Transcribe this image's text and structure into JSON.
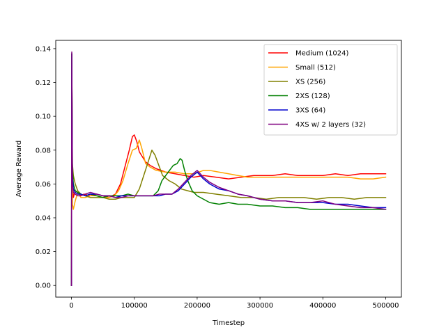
{
  "chart_data": {
    "type": "line",
    "title": "",
    "xlabel": "Timestep",
    "ylabel": "Average Reward",
    "xlim": [
      -25000,
      525000
    ],
    "ylim": [
      -0.0069,
      0.1449
    ],
    "xticks": [
      0,
      100000,
      200000,
      300000,
      400000,
      500000
    ],
    "xtick_labels": [
      "0",
      "100000",
      "200000",
      "300000",
      "400000",
      "500000"
    ],
    "yticks": [
      0.0,
      0.02,
      0.04,
      0.06,
      0.08,
      0.1,
      0.12,
      0.14
    ],
    "ytick_labels": [
      "0.00",
      "0.02",
      "0.04",
      "0.06",
      "0.08",
      "0.10",
      "0.12",
      "0.14"
    ],
    "grid": false,
    "legend_position": "upper right",
    "series": [
      {
        "name": "Medium (1024)",
        "color": "#ff0000",
        "points": [
          [
            0,
            0.0
          ],
          [
            500,
            0.137
          ],
          [
            1500,
            0.06
          ],
          [
            3000,
            0.052
          ],
          [
            6000,
            0.056
          ],
          [
            10000,
            0.055
          ],
          [
            15000,
            0.053
          ],
          [
            20000,
            0.054
          ],
          [
            30000,
            0.053
          ],
          [
            40000,
            0.054
          ],
          [
            50000,
            0.053
          ],
          [
            60000,
            0.052
          ],
          [
            70000,
            0.054
          ],
          [
            78000,
            0.06
          ],
          [
            85000,
            0.07
          ],
          [
            92000,
            0.08
          ],
          [
            97000,
            0.088
          ],
          [
            100000,
            0.089
          ],
          [
            104000,
            0.085
          ],
          [
            108000,
            0.079
          ],
          [
            113000,
            0.076
          ],
          [
            118000,
            0.073
          ],
          [
            125000,
            0.071
          ],
          [
            135000,
            0.069
          ],
          [
            150000,
            0.067
          ],
          [
            165000,
            0.066
          ],
          [
            180000,
            0.065
          ],
          [
            195000,
            0.064
          ],
          [
            210000,
            0.065
          ],
          [
            230000,
            0.064
          ],
          [
            250000,
            0.063
          ],
          [
            270000,
            0.064
          ],
          [
            290000,
            0.065
          ],
          [
            320000,
            0.065
          ],
          [
            340000,
            0.066
          ],
          [
            360000,
            0.065
          ],
          [
            380000,
            0.065
          ],
          [
            400000,
            0.065
          ],
          [
            420000,
            0.066
          ],
          [
            440000,
            0.065
          ],
          [
            460000,
            0.066
          ],
          [
            480000,
            0.066
          ],
          [
            500000,
            0.066
          ]
        ]
      },
      {
        "name": "Small (512)",
        "color": "#ffa500",
        "points": [
          [
            0,
            0.0
          ],
          [
            500,
            0.137
          ],
          [
            1500,
            0.048
          ],
          [
            3000,
            0.045
          ],
          [
            6000,
            0.05
          ],
          [
            10000,
            0.055
          ],
          [
            15000,
            0.052
          ],
          [
            22000,
            0.052
          ],
          [
            30000,
            0.053
          ],
          [
            40000,
            0.053
          ],
          [
            50000,
            0.052
          ],
          [
            60000,
            0.052
          ],
          [
            68000,
            0.053
          ],
          [
            75000,
            0.056
          ],
          [
            82000,
            0.062
          ],
          [
            90000,
            0.072
          ],
          [
            97000,
            0.08
          ],
          [
            103000,
            0.081
          ],
          [
            108000,
            0.086
          ],
          [
            112000,
            0.081
          ],
          [
            118000,
            0.072
          ],
          [
            125000,
            0.07
          ],
          [
            135000,
            0.068
          ],
          [
            150000,
            0.067
          ],
          [
            165000,
            0.067
          ],
          [
            180000,
            0.066
          ],
          [
            195000,
            0.066
          ],
          [
            210000,
            0.068
          ],
          [
            220000,
            0.068
          ],
          [
            235000,
            0.067
          ],
          [
            250000,
            0.066
          ],
          [
            265000,
            0.065
          ],
          [
            280000,
            0.064
          ],
          [
            300000,
            0.064
          ],
          [
            320000,
            0.064
          ],
          [
            340000,
            0.064
          ],
          [
            360000,
            0.064
          ],
          [
            380000,
            0.064
          ],
          [
            400000,
            0.064
          ],
          [
            420000,
            0.064
          ],
          [
            440000,
            0.064
          ],
          [
            460000,
            0.063
          ],
          [
            480000,
            0.063
          ],
          [
            500000,
            0.064
          ]
        ]
      },
      {
        "name": "XS (256)",
        "color": "#808000",
        "points": [
          [
            0,
            0.0
          ],
          [
            500,
            0.137
          ],
          [
            1500,
            0.072
          ],
          [
            3000,
            0.065
          ],
          [
            6000,
            0.06
          ],
          [
            10000,
            0.056
          ],
          [
            15000,
            0.054
          ],
          [
            22000,
            0.053
          ],
          [
            30000,
            0.052
          ],
          [
            40000,
            0.052
          ],
          [
            50000,
            0.052
          ],
          [
            60000,
            0.051
          ],
          [
            70000,
            0.051
          ],
          [
            80000,
            0.052
          ],
          [
            90000,
            0.052
          ],
          [
            100000,
            0.052
          ],
          [
            108000,
            0.057
          ],
          [
            115000,
            0.065
          ],
          [
            122000,
            0.073
          ],
          [
            128000,
            0.08
          ],
          [
            133000,
            0.077
          ],
          [
            138000,
            0.072
          ],
          [
            145000,
            0.065
          ],
          [
            155000,
            0.062
          ],
          [
            165000,
            0.06
          ],
          [
            175000,
            0.057
          ],
          [
            185000,
            0.056
          ],
          [
            195000,
            0.055
          ],
          [
            210000,
            0.055
          ],
          [
            230000,
            0.054
          ],
          [
            250000,
            0.053
          ],
          [
            270000,
            0.052
          ],
          [
            290000,
            0.052
          ],
          [
            310000,
            0.051
          ],
          [
            330000,
            0.052
          ],
          [
            350000,
            0.052
          ],
          [
            370000,
            0.052
          ],
          [
            390000,
            0.051
          ],
          [
            410000,
            0.052
          ],
          [
            430000,
            0.052
          ],
          [
            450000,
            0.051
          ],
          [
            470000,
            0.052
          ],
          [
            490000,
            0.052
          ],
          [
            500000,
            0.052
          ]
        ]
      },
      {
        "name": "2XS (128)",
        "color": "#008000",
        "points": [
          [
            0,
            0.0
          ],
          [
            500,
            0.137
          ],
          [
            1500,
            0.07
          ],
          [
            3000,
            0.06
          ],
          [
            6000,
            0.056
          ],
          [
            10000,
            0.055
          ],
          [
            15000,
            0.054
          ],
          [
            22000,
            0.053
          ],
          [
            30000,
            0.054
          ],
          [
            40000,
            0.053
          ],
          [
            50000,
            0.052
          ],
          [
            60000,
            0.053
          ],
          [
            70000,
            0.053
          ],
          [
            80000,
            0.053
          ],
          [
            90000,
            0.054
          ],
          [
            100000,
            0.053
          ],
          [
            110000,
            0.053
          ],
          [
            120000,
            0.053
          ],
          [
            130000,
            0.053
          ],
          [
            138000,
            0.056
          ],
          [
            144000,
            0.062
          ],
          [
            150000,
            0.065
          ],
          [
            156000,
            0.068
          ],
          [
            162000,
            0.071
          ],
          [
            168000,
            0.072
          ],
          [
            173000,
            0.075
          ],
          [
            176000,
            0.074
          ],
          [
            180000,
            0.068
          ],
          [
            185000,
            0.062
          ],
          [
            192000,
            0.056
          ],
          [
            200000,
            0.053
          ],
          [
            210000,
            0.051
          ],
          [
            220000,
            0.049
          ],
          [
            235000,
            0.048
          ],
          [
            250000,
            0.049
          ],
          [
            265000,
            0.048
          ],
          [
            280000,
            0.048
          ],
          [
            300000,
            0.047
          ],
          [
            320000,
            0.047
          ],
          [
            340000,
            0.046
          ],
          [
            360000,
            0.046
          ],
          [
            380000,
            0.045
          ],
          [
            400000,
            0.045
          ],
          [
            420000,
            0.045
          ],
          [
            440000,
            0.045
          ],
          [
            460000,
            0.045
          ],
          [
            480000,
            0.045
          ],
          [
            500000,
            0.045
          ]
        ]
      },
      {
        "name": "3XS (64)",
        "color": "#0000cd",
        "points": [
          [
            0,
            0.0
          ],
          [
            500,
            0.137
          ],
          [
            1500,
            0.065
          ],
          [
            3000,
            0.057
          ],
          [
            6000,
            0.055
          ],
          [
            10000,
            0.054
          ],
          [
            15000,
            0.054
          ],
          [
            22000,
            0.053
          ],
          [
            30000,
            0.054
          ],
          [
            40000,
            0.054
          ],
          [
            50000,
            0.053
          ],
          [
            60000,
            0.053
          ],
          [
            70000,
            0.052
          ],
          [
            80000,
            0.053
          ],
          [
            90000,
            0.053
          ],
          [
            100000,
            0.053
          ],
          [
            110000,
            0.053
          ],
          [
            120000,
            0.053
          ],
          [
            130000,
            0.053
          ],
          [
            140000,
            0.053
          ],
          [
            150000,
            0.054
          ],
          [
            160000,
            0.054
          ],
          [
            170000,
            0.056
          ],
          [
            180000,
            0.06
          ],
          [
            190000,
            0.064
          ],
          [
            200000,
            0.067
          ],
          [
            205000,
            0.065
          ],
          [
            210000,
            0.063
          ],
          [
            220000,
            0.06
          ],
          [
            235000,
            0.057
          ],
          [
            250000,
            0.056
          ],
          [
            265000,
            0.054
          ],
          [
            280000,
            0.053
          ],
          [
            300000,
            0.051
          ],
          [
            320000,
            0.05
          ],
          [
            340000,
            0.05
          ],
          [
            360000,
            0.049
          ],
          [
            380000,
            0.049
          ],
          [
            400000,
            0.049
          ],
          [
            420000,
            0.048
          ],
          [
            440000,
            0.048
          ],
          [
            460000,
            0.047
          ],
          [
            480000,
            0.046
          ],
          [
            500000,
            0.046
          ]
        ]
      },
      {
        "name": "4XS w/ 2 layers (32)",
        "color": "#800080",
        "points": [
          [
            0,
            0.0
          ],
          [
            500,
            0.138
          ],
          [
            1500,
            0.06
          ],
          [
            3000,
            0.055
          ],
          [
            6000,
            0.054
          ],
          [
            10000,
            0.053
          ],
          [
            15000,
            0.053
          ],
          [
            22000,
            0.054
          ],
          [
            30000,
            0.055
          ],
          [
            40000,
            0.054
          ],
          [
            50000,
            0.053
          ],
          [
            60000,
            0.053
          ],
          [
            70000,
            0.052
          ],
          [
            80000,
            0.052
          ],
          [
            90000,
            0.053
          ],
          [
            100000,
            0.053
          ],
          [
            110000,
            0.053
          ],
          [
            120000,
            0.053
          ],
          [
            130000,
            0.053
          ],
          [
            140000,
            0.054
          ],
          [
            150000,
            0.054
          ],
          [
            160000,
            0.054
          ],
          [
            170000,
            0.057
          ],
          [
            180000,
            0.061
          ],
          [
            190000,
            0.065
          ],
          [
            200000,
            0.068
          ],
          [
            205000,
            0.066
          ],
          [
            210000,
            0.064
          ],
          [
            220000,
            0.061
          ],
          [
            235000,
            0.058
          ],
          [
            250000,
            0.056
          ],
          [
            265000,
            0.054
          ],
          [
            280000,
            0.053
          ],
          [
            300000,
            0.051
          ],
          [
            320000,
            0.05
          ],
          [
            340000,
            0.05
          ],
          [
            360000,
            0.049
          ],
          [
            380000,
            0.049
          ],
          [
            400000,
            0.05
          ],
          [
            420000,
            0.048
          ],
          [
            440000,
            0.047
          ],
          [
            460000,
            0.046
          ],
          [
            480000,
            0.046
          ],
          [
            500000,
            0.045
          ]
        ]
      }
    ]
  }
}
